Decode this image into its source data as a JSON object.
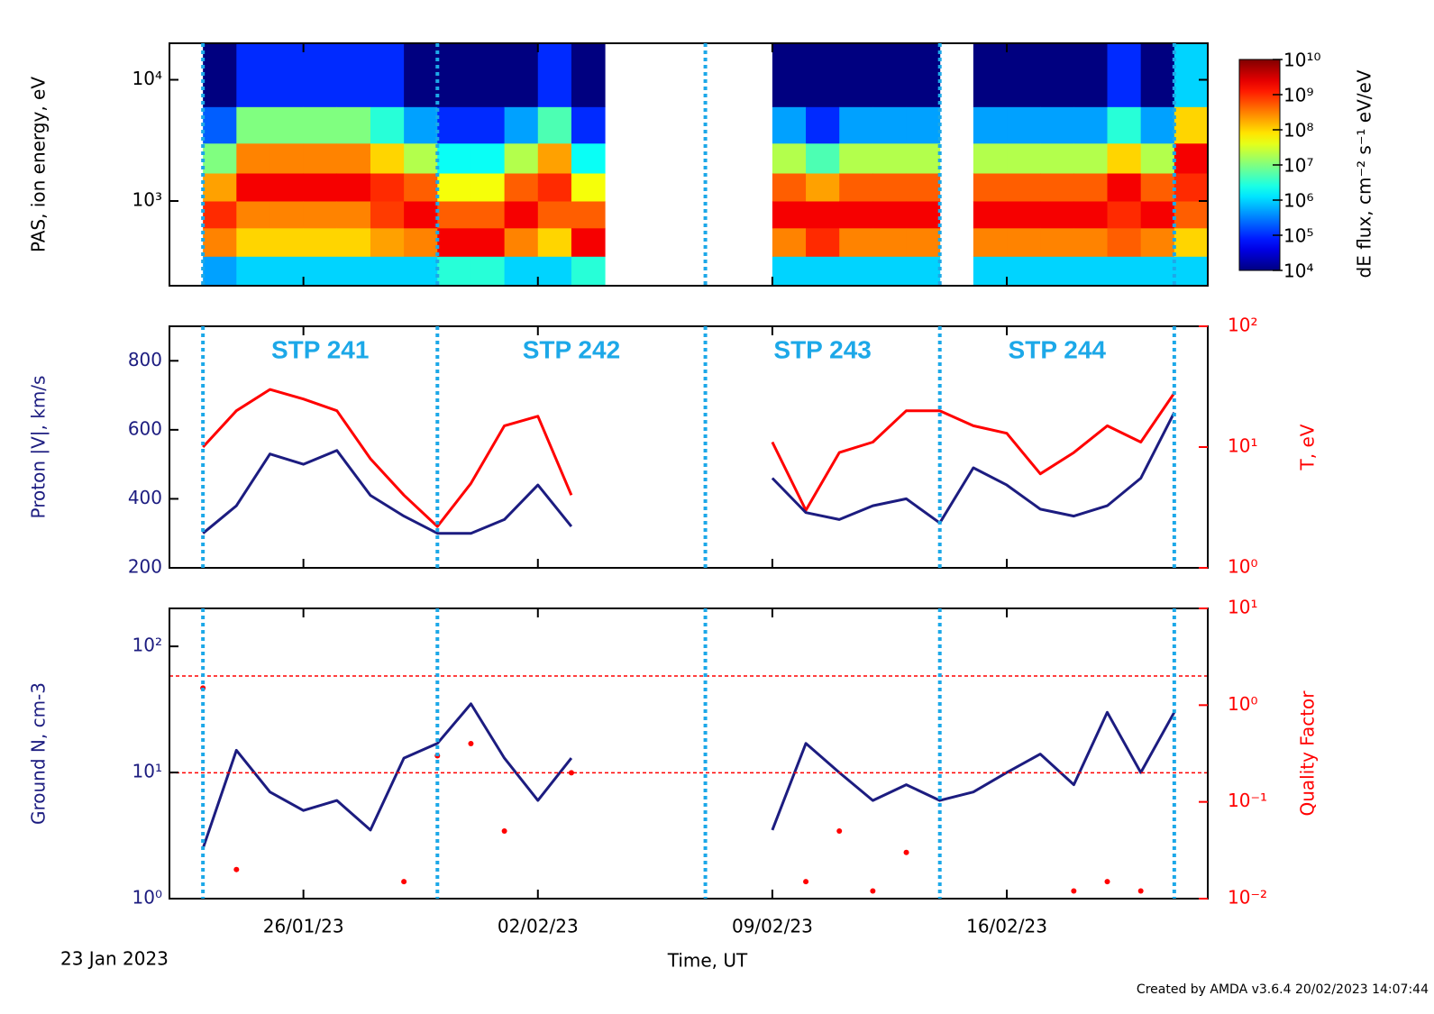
{
  "figure": {
    "start_label": "23 Jan 2023",
    "x_label": "Time, UT",
    "footer": "Created by AMDA v3.6.4 20/02/2023 14:07:44"
  },
  "chart_data": [
    {
      "type": "spectrogram",
      "y_label": "PAS, ion energy, eV",
      "yscale": "log",
      "ylim": [
        200,
        20000
      ],
      "yticks": [
        {
          "value": 1000,
          "label": "10³"
        },
        {
          "value": 10000,
          "label": "10⁴"
        }
      ],
      "xlim": [
        "2023-01-22",
        "2023-02-22"
      ],
      "vlines": [
        "2023-01-23",
        "2023-01-30",
        "2023-02-07",
        "2023-02-14",
        "2023-02-21"
      ],
      "vline_color": "#1ca8e8",
      "xbins": [
        "2023-01-23",
        "2023-01-24",
        "2023-01-25",
        "2023-01-26",
        "2023-01-27",
        "2023-01-28",
        "2023-01-29",
        "2023-01-30",
        "2023-01-31",
        "2023-02-01",
        "2023-02-02",
        "2023-02-03",
        "2023-02-04",
        "2023-02-05",
        "2023-02-06",
        "2023-02-07",
        "2023-02-08",
        "2023-02-09",
        "2023-02-10",
        "2023-02-11",
        "2023-02-12",
        "2023-02-13",
        "2023-02-14",
        "2023-02-15",
        "2023-02-16",
        "2023-02-17",
        "2023-02-18",
        "2023-02-19",
        "2023-02-20",
        "2023-02-21",
        "2023-02-22"
      ],
      "ybins": [
        200,
        350,
        600,
        1000,
        1700,
        3000,
        6000,
        20000
      ],
      "values": [
        [
          500000.0,
          300000000.0,
          1000000000.0,
          200000000.0,
          10000000.0,
          200000.0,
          10000.0
        ],
        [
          1000000.0,
          100000000.0,
          300000000.0,
          2000000000.0,
          300000000.0,
          10000000.0,
          100000.0
        ],
        [
          1000000.0,
          100000000.0,
          300000000.0,
          2000000000.0,
          300000000.0,
          10000000.0,
          100000.0
        ],
        [
          1000000.0,
          100000000.0,
          300000000.0,
          2000000000.0,
          300000000.0,
          10000000.0,
          100000.0
        ],
        [
          1000000.0,
          100000000.0,
          300000000.0,
          2000000000.0,
          300000000.0,
          10000000.0,
          100000.0
        ],
        [
          1000000.0,
          200000000.0,
          800000000.0,
          1000000000.0,
          100000000.0,
          3000000.0,
          100000.0
        ],
        [
          1000000.0,
          300000000.0,
          2000000000.0,
          500000000.0,
          20000000.0,
          500000.0,
          10000.0
        ],
        [
          3000000.0,
          2000000000.0,
          500000000.0,
          50000000.0,
          2000000.0,
          100000.0,
          10000.0
        ],
        [
          3000000.0,
          2000000000.0,
          500000000.0,
          50000000.0,
          2000000.0,
          100000.0,
          10000.0
        ],
        [
          1000000.0,
          300000000.0,
          2000000000.0,
          500000000.0,
          20000000.0,
          500000.0,
          10000.0
        ],
        [
          1000000.0,
          100000000.0,
          500000000.0,
          1000000000.0,
          200000000.0,
          5000000.0,
          100000.0
        ],
        [
          3000000.0,
          2000000000.0,
          500000000.0,
          50000000.0,
          2000000.0,
          100000.0,
          10000.0
        ],
        null,
        null,
        null,
        null,
        null,
        [
          1000000.0,
          300000000.0,
          2000000000.0,
          500000000.0,
          20000000.0,
          500000.0,
          10000.0
        ],
        [
          1000000.0,
          1000000000.0,
          2000000000.0,
          200000000.0,
          5000000.0,
          100000.0,
          10000.0
        ],
        [
          1000000.0,
          300000000.0,
          2000000000.0,
          500000000.0,
          20000000.0,
          500000.0,
          10000.0
        ],
        [
          1000000.0,
          300000000.0,
          2000000000.0,
          500000000.0,
          20000000.0,
          500000.0,
          10000.0
        ],
        [
          1000000.0,
          300000000.0,
          2000000000.0,
          500000000.0,
          20000000.0,
          500000.0,
          10000.0
        ],
        null,
        [
          1000000.0,
          300000000.0,
          2000000000.0,
          500000000.0,
          20000000.0,
          500000.0,
          10000.0
        ],
        [
          1000000.0,
          300000000.0,
          2000000000.0,
          500000000.0,
          20000000.0,
          500000.0,
          10000.0
        ],
        [
          1000000.0,
          300000000.0,
          2000000000.0,
          500000000.0,
          20000000.0,
          500000.0,
          10000.0
        ],
        [
          1000000.0,
          300000000.0,
          2000000000.0,
          500000000.0,
          20000000.0,
          500000.0,
          10000.0
        ],
        [
          1000000.0,
          500000000.0,
          1000000000.0,
          2000000000.0,
          100000000.0,
          3000000.0,
          100000.0
        ],
        [
          1000000.0,
          300000000.0,
          2000000000.0,
          500000000.0,
          20000000.0,
          500000.0,
          10000.0
        ],
        [
          1000000.0,
          100000000.0,
          500000000.0,
          1000000000.0,
          2000000000.0,
          100000000.0,
          1000000.0
        ]
      ],
      "colorbar": {
        "label": "dE flux, cm⁻² s⁻¹ eV/eV",
        "scale": "log",
        "clim": [
          10000,
          10000000000
        ],
        "ticks": [
          {
            "value": 10000,
            "label": "10⁴"
          },
          {
            "value": 100000,
            "label": "10⁵"
          },
          {
            "value": 1000000,
            "label": "10⁶"
          },
          {
            "value": 10000000,
            "label": "10⁷"
          },
          {
            "value": 100000000,
            "label": "10⁸"
          },
          {
            "value": 1000000000,
            "label": "10⁹"
          },
          {
            "value": 10000000000,
            "label": "10¹⁰"
          }
        ]
      }
    },
    {
      "type": "line",
      "y_label": "Proton |V|, km/s",
      "y2_label": "T, eV",
      "xlim": [
        "2023-01-22",
        "2023-02-22"
      ],
      "vlines": [
        "2023-01-23",
        "2023-01-30",
        "2023-02-07",
        "2023-02-14",
        "2023-02-21"
      ],
      "vline_color": "#1ca8e8",
      "annotations": [
        "STP 241",
        "STP 242",
        "STP 243",
        "STP 244"
      ],
      "annotation_color": "#1ca8e8",
      "ylim": [
        200,
        900
      ],
      "yticks": [
        200,
        400,
        600,
        800
      ],
      "y2scale": "log",
      "y2lim": [
        1,
        100
      ],
      "y2ticks": [
        {
          "value": 1,
          "label": "10⁰"
        },
        {
          "value": 10,
          "label": "10¹"
        },
        {
          "value": 100,
          "label": "10²"
        }
      ],
      "x": [
        "2023-01-23",
        "2023-01-24",
        "2023-01-25",
        "2023-01-26",
        "2023-01-27",
        "2023-01-28",
        "2023-01-29",
        "2023-01-30",
        "2023-01-31",
        "2023-02-01",
        "2023-02-02",
        "2023-02-03",
        "2023-02-04",
        "2023-02-05",
        "2023-02-06",
        "2023-02-07",
        "2023-02-08",
        "2023-02-09",
        "2023-02-10",
        "2023-02-11",
        "2023-02-12",
        "2023-02-13",
        "2023-02-14",
        "2023-02-15",
        "2023-02-16",
        "2023-02-17",
        "2023-02-18",
        "2023-02-19",
        "2023-02-20",
        "2023-02-21"
      ],
      "series": [
        {
          "color": "#ff0000",
          "axis": "y2",
          "mark": "line",
          "values": [
            10,
            20,
            30,
            25,
            20,
            8,
            4,
            2.2,
            5,
            15,
            18,
            4,
            null,
            null,
            null,
            null,
            null,
            11,
            3,
            9,
            11,
            20,
            20,
            15,
            13,
            6,
            9,
            15,
            11,
            28
          ]
        },
        {
          "color": "#1c1c80",
          "mark": "line",
          "values": [
            300,
            380,
            530,
            500,
            540,
            410,
            350,
            300,
            300,
            340,
            440,
            320,
            null,
            null,
            null,
            null,
            null,
            460,
            360,
            340,
            380,
            400,
            330,
            490,
            440,
            370,
            350,
            380,
            460,
            650
          ]
        }
      ]
    },
    {
      "type": "line",
      "y_label": "Ground N, cm-3",
      "y2_label": "Quality Factor",
      "xlim": [
        "2023-01-22",
        "2023-02-22"
      ],
      "xticks": [
        {
          "value": "2023-01-26",
          "label": "26/01/23"
        },
        {
          "value": "2023-02-02",
          "label": "02/02/23"
        },
        {
          "value": "2023-02-09",
          "label": "09/02/23"
        },
        {
          "value": "2023-02-16",
          "label": "16/02/23"
        }
      ],
      "vlines": [
        "2023-01-23",
        "2023-01-30",
        "2023-02-07",
        "2023-02-14",
        "2023-02-21"
      ],
      "vline_color": "#1ca8e8",
      "yscale": "log",
      "ylim": [
        1,
        200
      ],
      "yticks": [
        {
          "value": 1,
          "label": "10⁰"
        },
        {
          "value": 10,
          "label": "10¹"
        },
        {
          "value": 100,
          "label": "10²"
        }
      ],
      "y2scale": "log",
      "y2lim": [
        0.01,
        10
      ],
      "y2ticks": [
        {
          "value": 0.01,
          "label": "10⁻²"
        },
        {
          "value": 0.1,
          "label": "10⁻¹"
        },
        {
          "value": 1,
          "label": "10⁰"
        },
        {
          "value": 10,
          "label": "10¹"
        }
      ],
      "y2_hlines": [
        0.2,
        2
      ],
      "hline_color": "#ff0000",
      "x": [
        "2023-01-23",
        "2023-01-24",
        "2023-01-25",
        "2023-01-26",
        "2023-01-27",
        "2023-01-28",
        "2023-01-29",
        "2023-01-30",
        "2023-01-31",
        "2023-02-01",
        "2023-02-02",
        "2023-02-03",
        "2023-02-04",
        "2023-02-05",
        "2023-02-06",
        "2023-02-07",
        "2023-02-08",
        "2023-02-09",
        "2023-02-10",
        "2023-02-11",
        "2023-02-12",
        "2023-02-13",
        "2023-02-14",
        "2023-02-15",
        "2023-02-16",
        "2023-02-17",
        "2023-02-18",
        "2023-02-19",
        "2023-02-20",
        "2023-02-21"
      ],
      "series": [
        {
          "color": "#ff0000",
          "axis": "y2",
          "mark": "point",
          "values": [
            1.5,
            0.02,
            null,
            null,
            null,
            null,
            0.015,
            0.3,
            0.4,
            0.05,
            null,
            0.2,
            null,
            null,
            null,
            null,
            null,
            null,
            0.015,
            0.05,
            0.012,
            0.03,
            null,
            null,
            null,
            null,
            0.012,
            0.015,
            0.012,
            null
          ]
        },
        {
          "color": "#1c1c80",
          "mark": "line",
          "values": [
            2.5,
            15,
            7,
            5,
            6,
            3.5,
            13,
            17,
            35,
            13,
            6,
            13,
            null,
            null,
            null,
            null,
            null,
            3.5,
            17,
            10,
            6,
            8,
            6,
            7,
            10,
            14,
            8,
            30,
            10,
            30
          ]
        }
      ]
    }
  ]
}
